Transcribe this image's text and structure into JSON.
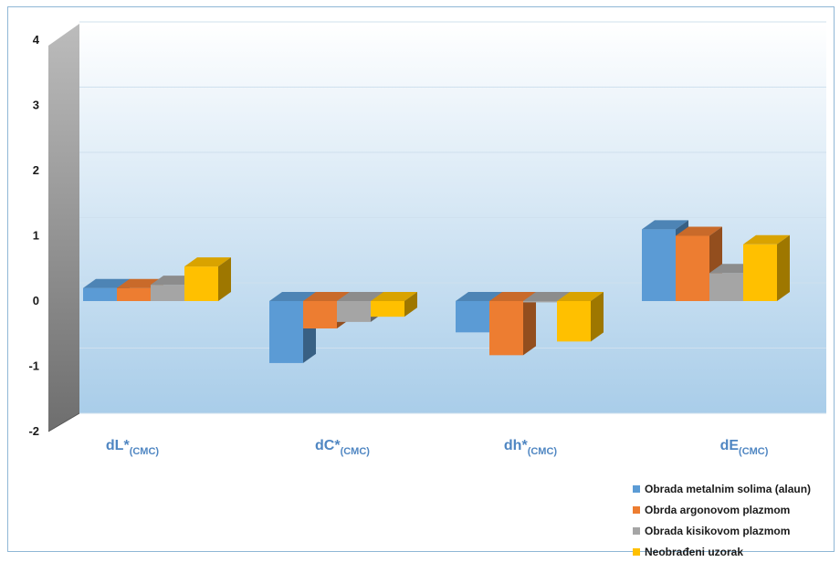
{
  "chart_data": {
    "type": "bar",
    "title": "",
    "xlabel": "",
    "ylabel": "",
    "ylim": [
      -2,
      4
    ],
    "y_ticks": [
      "4",
      "3",
      "2",
      "1",
      "0",
      "-1",
      "-2"
    ],
    "categories": [
      {
        "main": "dL*",
        "sub": "(CMC)"
      },
      {
        "main": "dC*",
        "sub": "(CMC)"
      },
      {
        "main": "dh*",
        "sub": "(CMC)"
      },
      {
        "main": "dE",
        "sub": "(CMC)"
      }
    ],
    "series": [
      {
        "name": "Obrada metalnim solima (alaun)",
        "color": "#5b9bd5",
        "values": [
          0.2,
          -0.95,
          -0.48,
          1.1
        ]
      },
      {
        "name": "Obrda argonovom plazmom",
        "color": "#ed7d31",
        "values": [
          0.2,
          -0.42,
          -0.83,
          1.0
        ]
      },
      {
        "name": "Obrada kisikovom plazmom",
        "color": "#a5a5a5",
        "values": [
          0.25,
          -0.32,
          -0.02,
          0.43
        ]
      },
      {
        "name": "Neobrađeni uzorak",
        "color": "#ffc000",
        "values": [
          0.53,
          -0.24,
          -0.62,
          0.87
        ]
      }
    ],
    "grid": true,
    "legend_position": "bottom-right"
  }
}
